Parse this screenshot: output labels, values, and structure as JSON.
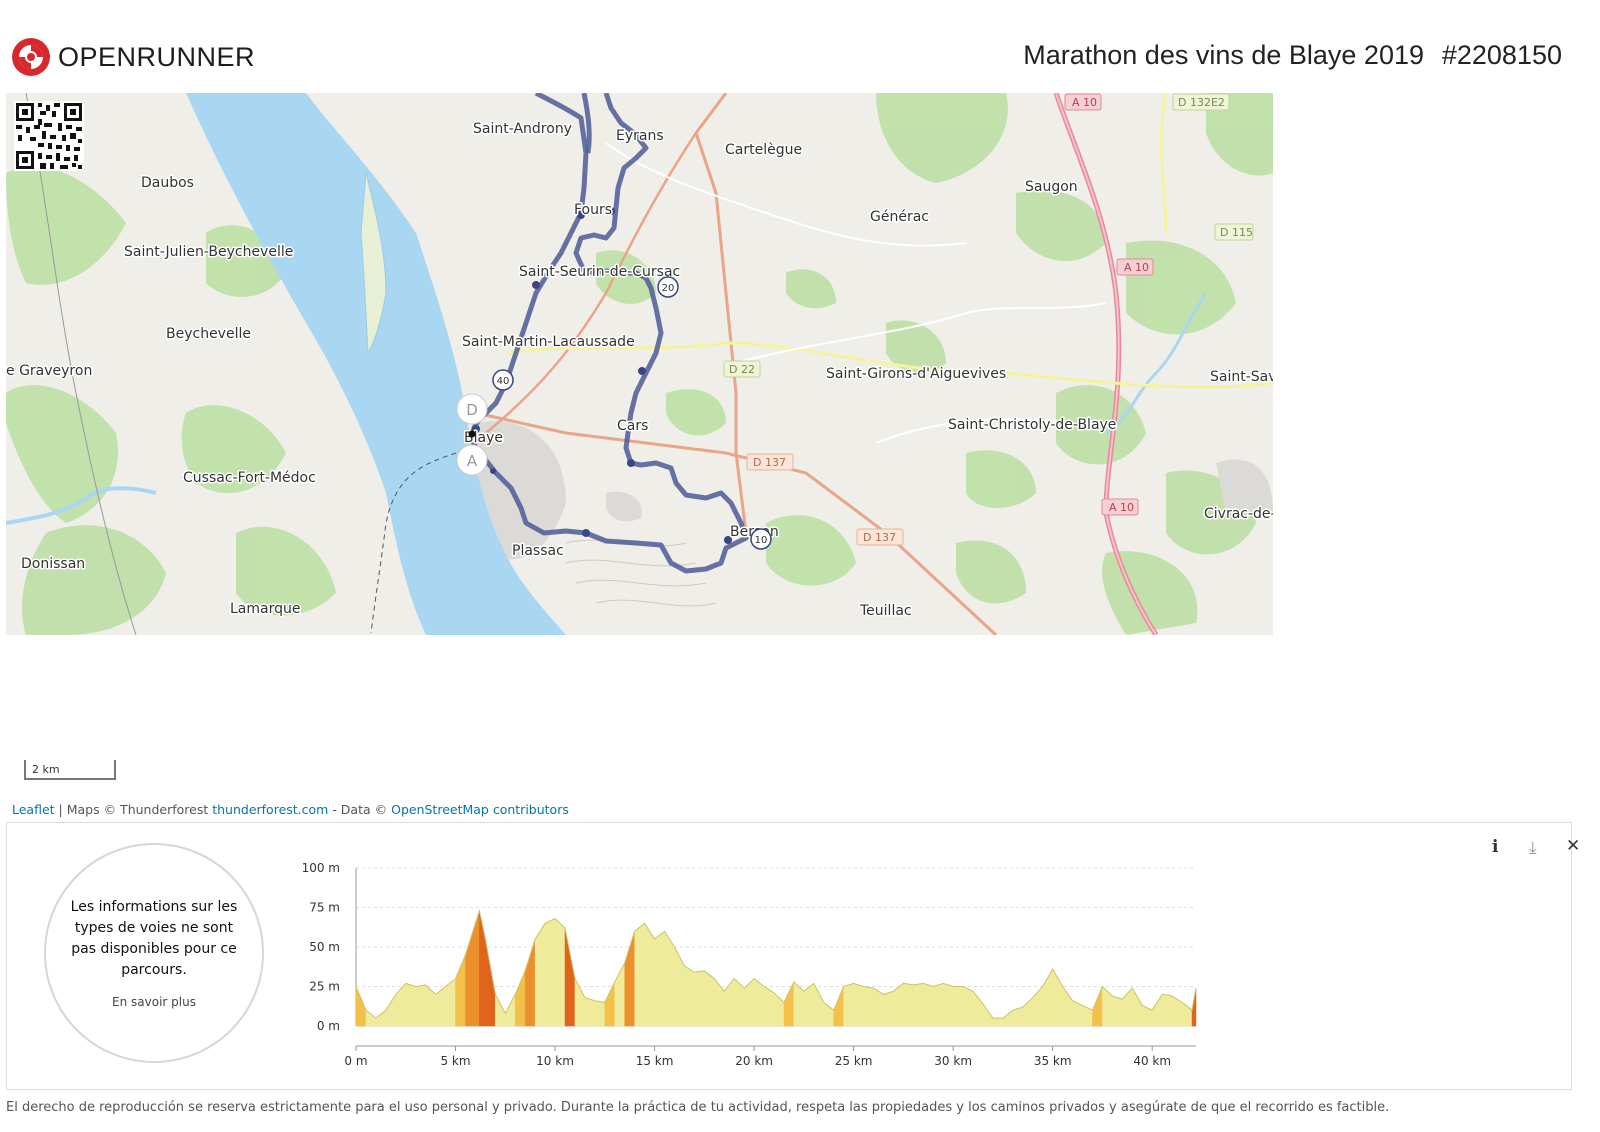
{
  "header": {
    "logo_text": "OPENRUNNER",
    "route_title": "Marathon des vins de Blaye 2019",
    "route_id": "#2208150"
  },
  "map": {
    "places": [
      "Saint-Androny",
      "Eyrans",
      "Cartelègue",
      "Daubos",
      "Fours",
      "Générac",
      "Saugon",
      "Saint-Julien-Beychevelle",
      "Saint-Seurin-de-Cursac",
      "Beychevelle",
      "Saint-Martin-Lacaussade",
      "Saint-Girons-d'Aiguevives",
      "Saint-Sav",
      "e Graveyron",
      "Blaye",
      "Cars",
      "Saint-Christoly-de-Blaye",
      "Cussac-Fort-Médoc",
      "Civrac-de-",
      "Berson",
      "Plassac",
      "Donissan",
      "Lamarque",
      "Teuillac"
    ],
    "roads": [
      "A 10",
      "D 132E2",
      "D 115",
      "A 10",
      "D 22",
      "D 137",
      "A 10",
      "D 137"
    ],
    "km_markers": [
      "20",
      "40",
      "10"
    ],
    "start_marker": "D",
    "end_marker": "A"
  },
  "scale": {
    "label": "2 km"
  },
  "attribution": {
    "leaflet": "Leaflet",
    "maps_text": " | Maps © Thunderforest ",
    "thunderforest": "thunderforest.com",
    "data_text": " - Data © ",
    "osm": "OpenStreetMap contributors"
  },
  "elevation": {
    "message": "Les informations sur les types de voies ne sont pas disponibles pour ce parcours.",
    "learn_more": "En savoir plus",
    "y_ticks": [
      "100 m",
      "75 m",
      "50 m",
      "25 m",
      "0 m"
    ],
    "x_ticks": [
      "0 m",
      "5 km",
      "10 km",
      "15 km",
      "20 km",
      "25 km",
      "30 km",
      "35 km",
      "40 km"
    ]
  },
  "chart_data": {
    "type": "area",
    "title": "",
    "xlabel": "",
    "ylabel": "",
    "xlim": [
      0,
      42.2
    ],
    "ylim": [
      0,
      100
    ],
    "x": [
      0,
      0.5,
      1,
      1.5,
      2,
      2.5,
      3,
      3.5,
      4,
      4.5,
      5,
      5.5,
      6,
      6.2,
      6.5,
      7,
      7.5,
      8,
      8.5,
      9,
      9.5,
      10,
      10.5,
      11,
      11.5,
      12,
      12.5,
      13,
      13.5,
      14,
      14.5,
      15,
      15.5,
      16,
      16.5,
      17,
      17.5,
      18,
      18.5,
      19,
      19.5,
      20,
      20.5,
      21,
      21.5,
      22,
      22.5,
      23,
      23.5,
      24,
      24.5,
      25,
      25.5,
      26,
      26.5,
      27,
      27.5,
      28,
      28.5,
      29,
      29.5,
      30,
      30.5,
      31,
      31.5,
      32,
      32.5,
      33,
      33.5,
      34,
      34.5,
      35,
      35.5,
      36,
      36.5,
      37,
      37.5,
      38,
      38.5,
      39,
      39.5,
      40,
      40.5,
      41,
      41.5,
      42,
      42.2
    ],
    "series": [
      {
        "values": [
          25,
          10,
          5,
          10,
          20,
          27,
          25,
          26,
          20,
          25,
          30,
          45,
          65,
          73,
          55,
          20,
          8,
          20,
          35,
          55,
          65,
          68,
          62,
          30,
          18,
          16,
          15,
          28,
          40,
          60,
          65,
          55,
          60,
          50,
          38,
          34,
          35,
          30,
          22,
          30,
          24,
          30,
          25,
          21,
          15,
          28,
          22,
          27,
          15,
          10,
          25,
          27,
          25,
          24,
          20,
          22,
          27,
          26,
          27,
          25,
          27,
          25,
          25,
          22,
          14,
          5,
          5,
          10,
          12,
          18,
          25,
          36,
          25,
          16,
          13,
          10,
          25,
          19,
          17,
          24,
          13,
          10,
          20,
          19,
          15,
          10,
          24
        ]
      }
    ],
    "grade_colors": [
      "#eeeb9a",
      "#f3c04a",
      "#ec8f2d",
      "#e0641c"
    ]
  }
}
